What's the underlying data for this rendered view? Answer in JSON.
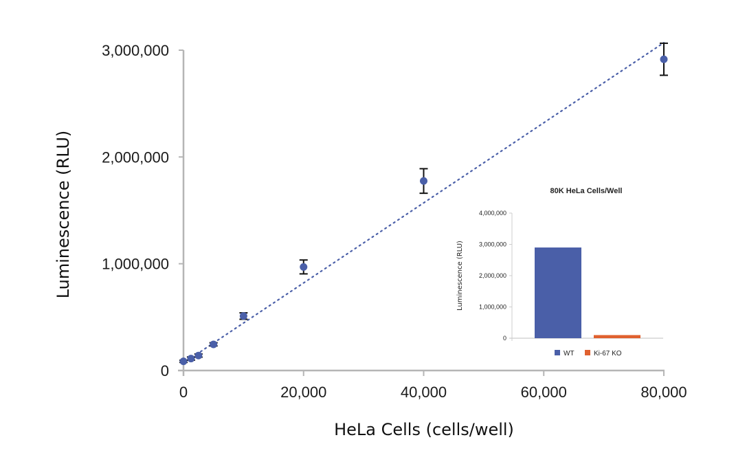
{
  "chart_data": [
    {
      "type": "scatter",
      "title": "",
      "xlabel": "HeLa Cells (cells/well)",
      "ylabel": "Luminescence (RLU)",
      "xlim": [
        0,
        80000
      ],
      "ylim": [
        0,
        3000000
      ],
      "x_ticks": [
        0,
        20000,
        40000,
        60000,
        80000
      ],
      "x_tick_labels": [
        "0",
        "20,000",
        "40,000",
        "60,000",
        "80,000"
      ],
      "y_ticks": [
        0,
        1000000,
        2000000,
        3000000
      ],
      "y_tick_labels": [
        "0",
        "1,000,000",
        "2,000,000",
        "3,000,000"
      ],
      "grid": false,
      "series": [
        {
          "name": "HeLa",
          "color": "#4a5fa8",
          "x": [
            0,
            1250,
            2500,
            5000,
            10000,
            20000,
            40000,
            80000
          ],
          "y": [
            86000,
            112000,
            140000,
            245000,
            510000,
            970000,
            1775000,
            2915000
          ],
          "error": [
            10000,
            15000,
            15000,
            15000,
            30000,
            65000,
            115000,
            150000
          ]
        }
      ],
      "trendline": {
        "type": "linear",
        "style": "dotted",
        "color": "#4a5fa8",
        "x": [
          0,
          80000
        ],
        "y": [
          70000,
          3070000
        ]
      }
    },
    {
      "type": "bar",
      "title": "80K HeLa Cells/Well",
      "xlabel": "",
      "ylabel": "Luminescence (RLU)",
      "ylim": [
        0,
        4000000
      ],
      "y_ticks": [
        0,
        1000000,
        2000000,
        3000000,
        4000000
      ],
      "y_tick_labels": [
        "0",
        "1,000,000",
        "2,000,000",
        "3,000,000",
        "4,000,000"
      ],
      "categories": [
        "WT",
        "Ki-67 KO"
      ],
      "values": [
        2900000,
        100000
      ],
      "colors": [
        "#4a5fa8",
        "#e0612f"
      ],
      "legend": {
        "position": "bottom",
        "entries": [
          "WT",
          "Ki-67 KO"
        ]
      }
    }
  ]
}
